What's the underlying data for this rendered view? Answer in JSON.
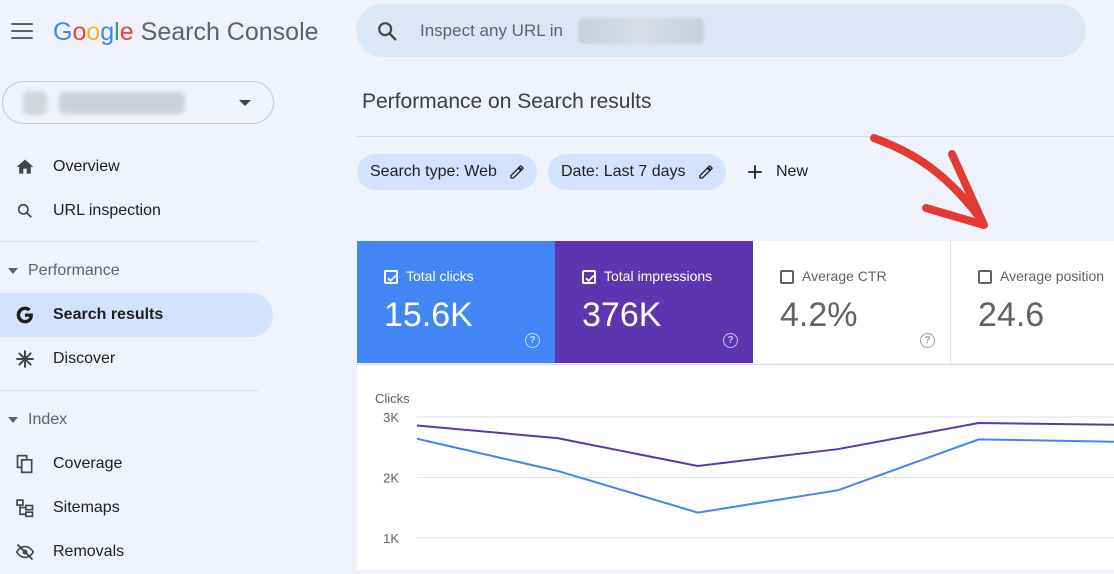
{
  "header": {
    "logo_letters": [
      "G",
      "o",
      "o",
      "g",
      "l",
      "e"
    ],
    "product_name": "Search Console",
    "search_placeholder": "Inspect any URL in"
  },
  "sidebar": {
    "items": [
      {
        "label": "Overview",
        "icon": "home-icon"
      },
      {
        "label": "URL inspection",
        "icon": "search-icon"
      },
      {
        "section": "Performance"
      },
      {
        "label": "Search results",
        "icon": "google-g-icon",
        "active": true
      },
      {
        "label": "Discover",
        "icon": "asterisk-icon"
      },
      {
        "section": "Index"
      },
      {
        "label": "Coverage",
        "icon": "pages-icon"
      },
      {
        "label": "Sitemaps",
        "icon": "sitemap-icon"
      },
      {
        "label": "Removals",
        "icon": "eye-off-icon"
      }
    ]
  },
  "main": {
    "title": "Performance on Search results",
    "filters": [
      {
        "label": "Search type: Web"
      },
      {
        "label": "Date: Last 7 days"
      }
    ],
    "new_label": "New",
    "metrics": [
      {
        "label": "Total clicks",
        "value": "15.6K",
        "checked": true,
        "color": "#4285f4"
      },
      {
        "label": "Total impressions",
        "value": "376K",
        "checked": true,
        "color": "#5e35b1"
      },
      {
        "label": "Average CTR",
        "value": "4.2%",
        "checked": false
      },
      {
        "label": "Average position",
        "value": "24.6",
        "checked": false
      }
    ],
    "annotation_color": "#e53935"
  },
  "chart_data": {
    "type": "line",
    "ylabel": "Clicks",
    "y_ticks": [
      "3K",
      "2K",
      "1K"
    ],
    "y_tick_values": [
      3000,
      2000,
      1000
    ],
    "ylim": [
      1000,
      3000
    ],
    "grid": true,
    "series": [
      {
        "color": "#5e35b1",
        "values": [
          2860,
          2650,
          2190,
          2470,
          2900,
          2870
        ]
      },
      {
        "color": "#4285f4",
        "values": [
          2640,
          2110,
          1420,
          1790,
          2630,
          2590
        ]
      }
    ]
  }
}
